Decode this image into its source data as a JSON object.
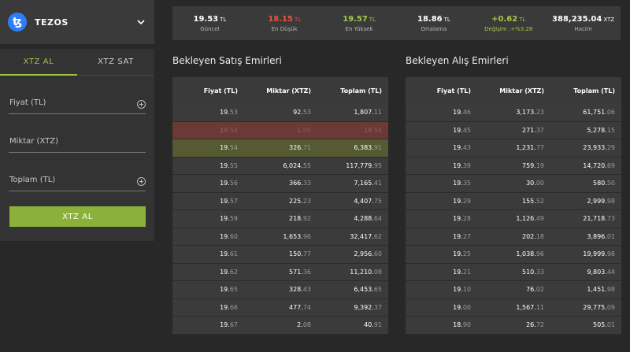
{
  "coin": {
    "name": "TEZOS"
  },
  "tabs": {
    "buy": "XTZ AL",
    "sell": "XTZ SAT"
  },
  "form": {
    "price_label": "Fiyat (TL)",
    "amount_label": "Miktar (XTZ)",
    "total_label": "Toplam (TL)",
    "submit": "XTZ AL"
  },
  "stats": [
    {
      "value": "19.53",
      "unit": "TL",
      "label": "Güncel",
      "color": "#ffffff"
    },
    {
      "value": "18.15",
      "unit": "TL",
      "label": "En Düşük",
      "color": "#e8533c"
    },
    {
      "value": "19.57",
      "unit": "TL",
      "label": "En Yüksek",
      "color": "#a2c84a"
    },
    {
      "value": "18.86",
      "unit": "TL",
      "label": "Ortalama",
      "color": "#ffffff"
    },
    {
      "value": "+0.62",
      "unit": "TL",
      "label": "Değişim :+%3.28",
      "color": "#a2c84a"
    },
    {
      "value": "388,235.04",
      "unit": "XTZ",
      "label": "Hacim",
      "color": "#ffffff"
    }
  ],
  "sell_title": "Bekleyen Satış Emirleri",
  "buy_title": "Bekleyen Alış Emirleri",
  "headers": {
    "price": "Fiyat (TL)",
    "amount": "Miktar (XTZ)",
    "total": "Toplam (TL)"
  },
  "sell_orders": [
    {
      "price": [
        "19.",
        "53"
      ],
      "amount": [
        "92.",
        "53"
      ],
      "total": [
        "1,807.",
        "11"
      ]
    },
    {
      "price": [
        "19.",
        "54"
      ],
      "amount": [
        "1.",
        "00"
      ],
      "total": [
        "19.",
        "54"
      ],
      "highlight": "red"
    },
    {
      "price": [
        "19.",
        "54"
      ],
      "amount": [
        "326.",
        "71"
      ],
      "total": [
        "6,383.",
        "91"
      ],
      "highlight": "olive"
    },
    {
      "price": [
        "19.",
        "55"
      ],
      "amount": [
        "6,024.",
        "55"
      ],
      "total": [
        "117,779.",
        "95"
      ]
    },
    {
      "price": [
        "19.",
        "56"
      ],
      "amount": [
        "366.",
        "33"
      ],
      "total": [
        "7,165.",
        "41"
      ]
    },
    {
      "price": [
        "19.",
        "57"
      ],
      "amount": [
        "225.",
        "23"
      ],
      "total": [
        "4,407.",
        "75"
      ]
    },
    {
      "price": [
        "19.",
        "59"
      ],
      "amount": [
        "218.",
        "92"
      ],
      "total": [
        "4,288.",
        "64"
      ]
    },
    {
      "price": [
        "19.",
        "60"
      ],
      "amount": [
        "1,653.",
        "96"
      ],
      "total": [
        "32,417.",
        "62"
      ]
    },
    {
      "price": [
        "19.",
        "61"
      ],
      "amount": [
        "150.",
        "77"
      ],
      "total": [
        "2,956.",
        "60"
      ]
    },
    {
      "price": [
        "19.",
        "62"
      ],
      "amount": [
        "571.",
        "36"
      ],
      "total": [
        "11,210.",
        "08"
      ]
    },
    {
      "price": [
        "19.",
        "65"
      ],
      "amount": [
        "328.",
        "43"
      ],
      "total": [
        "6,453.",
        "65"
      ]
    },
    {
      "price": [
        "19.",
        "66"
      ],
      "amount": [
        "477.",
        "74"
      ],
      "total": [
        "9,392.",
        "37"
      ]
    },
    {
      "price": [
        "19.",
        "67"
      ],
      "amount": [
        "2.",
        "08"
      ],
      "total": [
        "40.",
        "91"
      ]
    }
  ],
  "buy_orders": [
    {
      "price": [
        "19.",
        "46"
      ],
      "amount": [
        "3,173.",
        "23"
      ],
      "total": [
        "61,751.",
        "06"
      ]
    },
    {
      "price": [
        "19.",
        "45"
      ],
      "amount": [
        "271.",
        "37"
      ],
      "total": [
        "5,278.",
        "15"
      ]
    },
    {
      "price": [
        "19.",
        "43"
      ],
      "amount": [
        "1,231.",
        "77"
      ],
      "total": [
        "23,933.",
        "29"
      ]
    },
    {
      "price": [
        "19.",
        "39"
      ],
      "amount": [
        "759.",
        "19"
      ],
      "total": [
        "14,720.",
        "69"
      ]
    },
    {
      "price": [
        "19.",
        "35"
      ],
      "amount": [
        "30.",
        "00"
      ],
      "total": [
        "580.",
        "50"
      ]
    },
    {
      "price": [
        "19.",
        "29"
      ],
      "amount": [
        "155.",
        "52"
      ],
      "total": [
        "2,999.",
        "98"
      ]
    },
    {
      "price": [
        "19.",
        "28"
      ],
      "amount": [
        "1,126.",
        "49"
      ],
      "total": [
        "21,718.",
        "73"
      ]
    },
    {
      "price": [
        "19.",
        "27"
      ],
      "amount": [
        "202.",
        "18"
      ],
      "total": [
        "3,896.",
        "01"
      ]
    },
    {
      "price": [
        "19.",
        "25"
      ],
      "amount": [
        "1,038.",
        "96"
      ],
      "total": [
        "19,999.",
        "98"
      ]
    },
    {
      "price": [
        "19.",
        "21"
      ],
      "amount": [
        "510.",
        "33"
      ],
      "total": [
        "9,803.",
        "44"
      ]
    },
    {
      "price": [
        "19.",
        "10"
      ],
      "amount": [
        "76.",
        "02"
      ],
      "total": [
        "1,451.",
        "98"
      ]
    },
    {
      "price": [
        "19.",
        "00"
      ],
      "amount": [
        "1,567.",
        "11"
      ],
      "total": [
        "29,775.",
        "09"
      ]
    },
    {
      "price": [
        "18.",
        "90"
      ],
      "amount": [
        "26.",
        "72"
      ],
      "total": [
        "505.",
        "01"
      ]
    }
  ]
}
